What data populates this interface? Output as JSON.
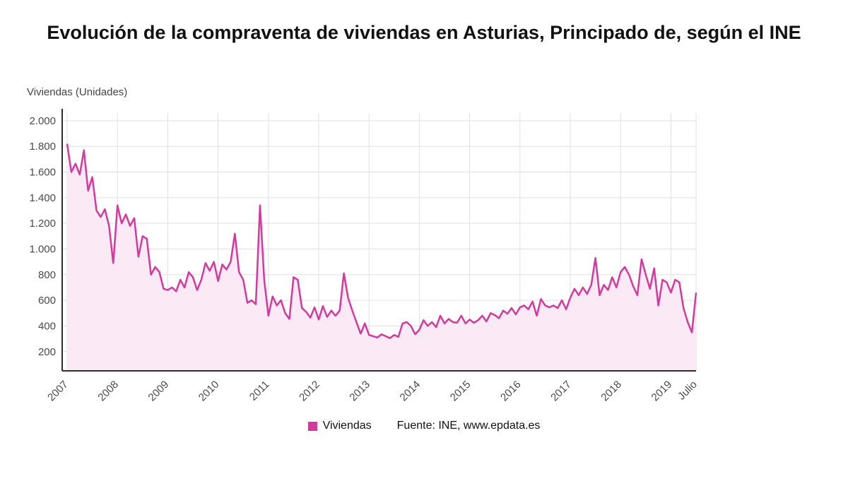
{
  "title": "Evolución de la compraventa de viviendas en Asturias, Principado de, según el INE",
  "y_axis_label": "Viviendas (Unidades)",
  "legend": {
    "series_label": "Viviendas",
    "source": "Fuente: INE, www.epdata.es"
  },
  "colors": {
    "line": "#d4399e",
    "area": "#fbe9f5",
    "grid": "#e0e0e0",
    "axis": "#2d2d2d",
    "tick_text": "#4a4a4a"
  },
  "chart_data": {
    "type": "line",
    "title": "Evolución de la compraventa de viviendas en Asturias, Principado de, según el INE",
    "ylabel": "Viviendas (Unidades)",
    "legend_position": "bottom",
    "grid": true,
    "ylim": [
      50,
      2060
    ],
    "y_ticks": [
      200,
      400,
      600,
      800,
      1000,
      1200,
      1400,
      1600,
      1800,
      2000
    ],
    "x_tick_labels": [
      "2007",
      "2008",
      "2009",
      "2010",
      "2011",
      "2012",
      "2013",
      "2014",
      "2015",
      "2016",
      "2017",
      "2018",
      "2019",
      "Julio"
    ],
    "x_tick_indices": [
      0,
      12,
      24,
      36,
      48,
      60,
      72,
      84,
      96,
      108,
      120,
      132,
      144,
      150
    ],
    "series": [
      {
        "name": "Viviendas",
        "values": [
          1820,
          1600,
          1665,
          1580,
          1770,
          1455,
          1560,
          1300,
          1250,
          1310,
          1180,
          890,
          1340,
          1200,
          1270,
          1180,
          1240,
          940,
          1100,
          1080,
          800,
          860,
          820,
          690,
          680,
          700,
          670,
          760,
          700,
          820,
          780,
          680,
          760,
          890,
          830,
          900,
          750,
          880,
          840,
          900,
          1120,
          820,
          760,
          580,
          600,
          570,
          1340,
          760,
          480,
          630,
          560,
          600,
          500,
          455,
          780,
          760,
          540,
          510,
          465,
          545,
          450,
          555,
          470,
          520,
          480,
          520,
          810,
          620,
          520,
          430,
          340,
          420,
          330,
          320,
          310,
          335,
          320,
          305,
          330,
          315,
          420,
          430,
          400,
          335,
          370,
          445,
          400,
          430,
          390,
          480,
          420,
          455,
          430,
          425,
          480,
          420,
          450,
          425,
          445,
          480,
          435,
          500,
          485,
          460,
          520,
          495,
          540,
          490,
          545,
          560,
          530,
          590,
          480,
          610,
          560,
          545,
          560,
          540,
          600,
          530,
          620,
          690,
          640,
          700,
          650,
          720,
          930,
          640,
          720,
          680,
          780,
          700,
          820,
          860,
          800,
          710,
          640,
          920,
          800,
          690,
          850,
          560,
          760,
          740,
          660,
          760,
          740,
          540,
          430,
          350,
          660
        ]
      }
    ]
  }
}
